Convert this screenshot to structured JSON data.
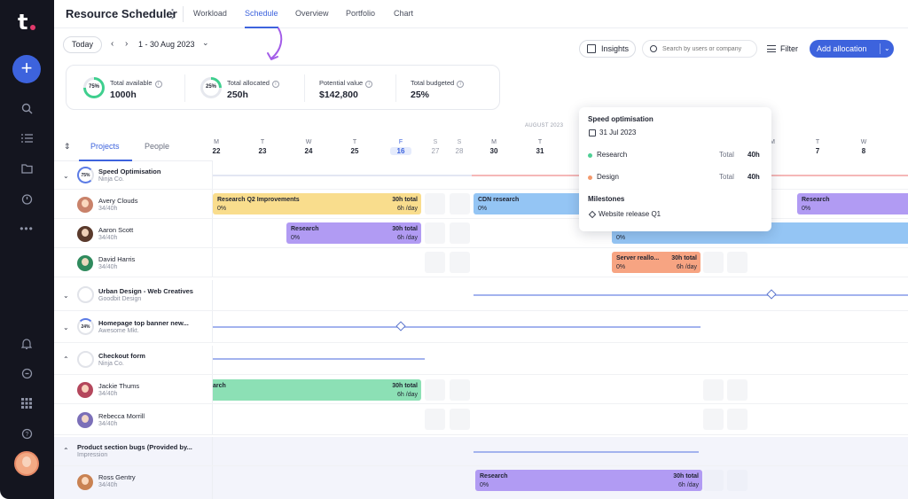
{
  "app": {
    "title": "Resource Scheduler",
    "menu_glyph": "⋮"
  },
  "tabs": [
    {
      "label": "Workload"
    },
    {
      "label": "Schedule",
      "active": true
    },
    {
      "label": "Overview"
    },
    {
      "label": "Portfolio"
    },
    {
      "label": "Chart"
    }
  ],
  "toolbar": {
    "today_label": "Today",
    "date_range": "1 - 30 Aug 2023",
    "insights_label": "Insights",
    "search_placeholder": "Search by users or company",
    "filter_label": "Filter",
    "add_label": "Add allocation"
  },
  "summary": [
    {
      "ring": "75%",
      "label": "Total available",
      "value": "1000h",
      "progress": 0.75
    },
    {
      "ring": "25%",
      "label": "Total allocated",
      "value": "250h",
      "progress": 0.25
    },
    {
      "label": "Potential value",
      "value": "$142,800"
    },
    {
      "label": "Total budgeted",
      "value": "25%"
    }
  ],
  "panel_tabs": {
    "projects": "Projects",
    "people": "People"
  },
  "month_label": "AUGUST 2023",
  "days": [
    {
      "dow": "M",
      "num": "22"
    },
    {
      "dow": "T",
      "num": "23"
    },
    {
      "dow": "W",
      "num": "24"
    },
    {
      "dow": "T",
      "num": "25"
    },
    {
      "dow": "F",
      "num": "16",
      "today": true
    },
    {
      "dow": "S",
      "num": "27",
      "weekend": true
    },
    {
      "dow": "S",
      "num": "28",
      "weekend": true
    },
    {
      "dow": "M",
      "num": "30"
    },
    {
      "dow": "T",
      "num": "31"
    },
    {
      "dow": "M",
      "num": ""
    },
    {
      "dow": "T",
      "num": "7"
    },
    {
      "dow": "W",
      "num": "8"
    }
  ],
  "projects": [
    {
      "ring": "75%",
      "name": "Speed Optimisation",
      "client": "Ninja Co."
    },
    {
      "ring": "",
      "name": "Urban Design - Web Creatives",
      "client": "Goodbit Design"
    },
    {
      "ring": "24%",
      "name": "Homepage top banner new...",
      "client": "Awesome Mkt."
    },
    {
      "ring": "",
      "name": "Checkout form",
      "client": "Ninja Co."
    },
    {
      "ring": "",
      "name": "Product section bugs (Provided by...",
      "client": "Impression"
    }
  ],
  "people": [
    {
      "name": "Avery Clouds",
      "cap": "34/40h",
      "color": "#c9826a"
    },
    {
      "name": "Aaron Scott",
      "cap": "34/40h",
      "color": "#5a3a2c"
    },
    {
      "name": "David Harris",
      "cap": "34/40h",
      "color": "#2f8a5d"
    },
    {
      "name": "Jackie Thums",
      "cap": "34/40h",
      "color": "#b4475c"
    },
    {
      "name": "Rebecca Morrill",
      "cap": "34/40h",
      "color": "#7b6fb8"
    },
    {
      "name": "Ross Gentry",
      "cap": "34/40h",
      "color": "#c98252"
    }
  ],
  "bars": {
    "avery_1": {
      "title": "Research Q2 Improvements",
      "pct": "0%",
      "total": "30h total",
      "daily": "6h /day"
    },
    "avery_2": {
      "title": "CDN research",
      "pct": "0%"
    },
    "avery_3": {
      "title": "Research",
      "pct": "0%"
    },
    "aaron_1": {
      "title": "Research",
      "pct": "0%",
      "total": "30h total",
      "daily": "6h /day"
    },
    "aaron_2": {
      "pct": "0%"
    },
    "david_1": {
      "title": "Server reallo...",
      "pct": "0%",
      "total": "30h total",
      "daily": "6h /day"
    },
    "jackie_1": {
      "title": "arch",
      "pct": "0%",
      "total": "30h total",
      "daily": "6h /day"
    },
    "ross_1": {
      "title": "Research",
      "pct": "0%",
      "total": "30h total",
      "daily": "6h /day"
    }
  },
  "popover": {
    "title": "Speed optimisation",
    "date": "31 Jul 2023",
    "items": [
      {
        "name": "Research",
        "total_label": "Total",
        "hours": "40h",
        "color": "#4fcf95"
      },
      {
        "name": "Design",
        "total_label": "Total",
        "hours": "40h",
        "color": "#f49a6e"
      }
    ],
    "milestones_title": "Milestones",
    "milestone": "Website release Q1"
  },
  "colors": {
    "accent": "#3d63dd",
    "rail": "#14151f"
  }
}
